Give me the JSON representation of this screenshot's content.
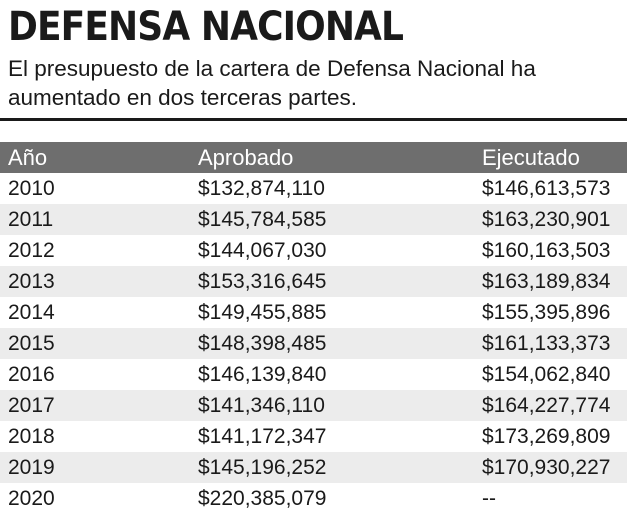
{
  "header": {
    "title": "DEFENSA NACIONAL",
    "subtitle": "El presupuesto de la cartera de Defensa Nacional ha aumentado en dos terceras partes."
  },
  "colors": {
    "header_bg": "#6e6e6e",
    "header_text": "#ffffff",
    "alt_row_bg": "#ececec",
    "text": "#1a1a1a"
  },
  "chart_data": {
    "type": "table",
    "title": "DEFENSA NACIONAL",
    "subtitle": "El presupuesto de la cartera de Defensa Nacional ha aumentado en dos terceras partes.",
    "columns": [
      "Año",
      "Aprobado",
      "Ejecutado"
    ],
    "rows": [
      [
        "2010",
        "$132,874,110",
        "$146,613,573"
      ],
      [
        "2011",
        "$145,784,585",
        "$163,230,901"
      ],
      [
        "2012",
        "$144,067,030",
        "$160,163,503"
      ],
      [
        "2013",
        "$153,316,645",
        "$163,189,834"
      ],
      [
        "2014",
        "$149,455,885",
        "$155,395,896"
      ],
      [
        "2015",
        "$148,398,485",
        "$161,133,373"
      ],
      [
        "2016",
        "$146,139,840",
        "$154,062,840"
      ],
      [
        "2017",
        "$141,346,110",
        "$164,227,774"
      ],
      [
        "2018",
        "$141,172,347",
        "$173,269,809"
      ],
      [
        "2019",
        "$145,196,252",
        "$170,930,227"
      ],
      [
        "2020",
        "$220,385,079",
        "--"
      ]
    ]
  }
}
